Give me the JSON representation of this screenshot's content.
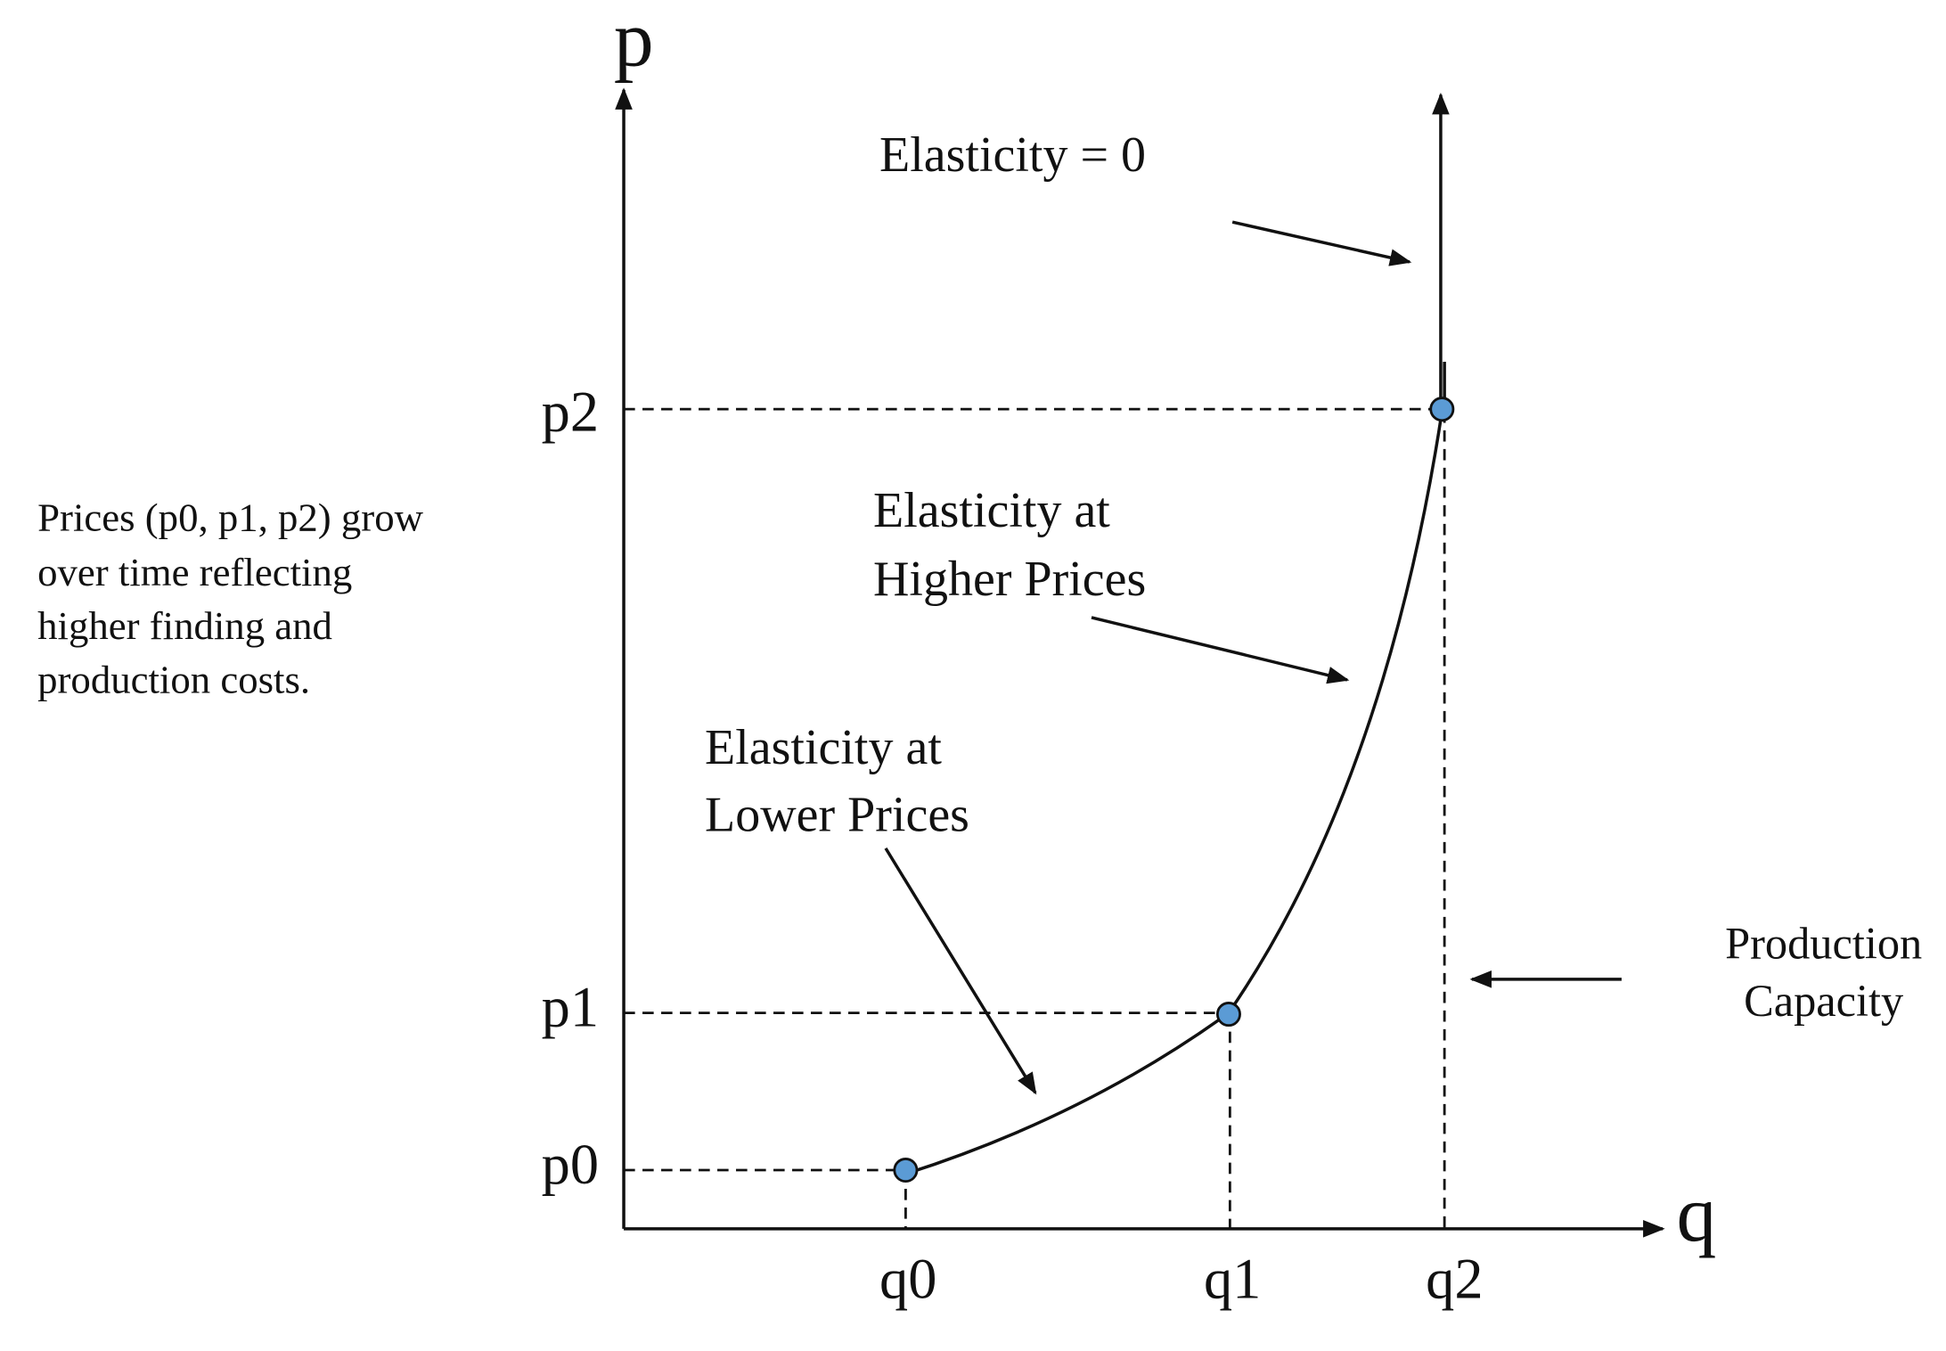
{
  "axes": {
    "y_label": "p",
    "x_label": "q"
  },
  "price_levels": [
    "p0",
    "p1",
    "p2"
  ],
  "quantity_levels": [
    "q0",
    "q1",
    "q2"
  ],
  "annotations": {
    "elasticity_zero": "Elasticity = 0",
    "higher_prices": [
      "Elasticity at",
      "Higher Prices"
    ],
    "lower_prices": [
      "Elasticity at",
      "Lower Prices"
    ],
    "production_capacity": [
      "Production",
      "Capacity"
    ]
  },
  "side_text": [
    "Prices (p0, p1, p2) grow",
    "over time reflecting",
    "higher finding and",
    "production costs."
  ]
}
